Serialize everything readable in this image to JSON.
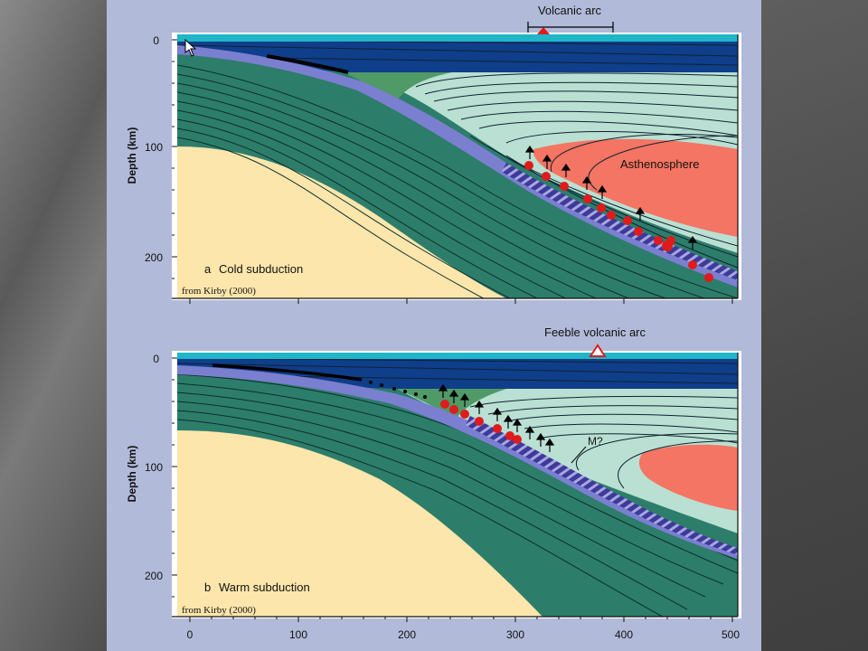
{
  "panel_a": {
    "arc_label": "Volcanic arc",
    "caption_letter": "a",
    "caption_text": "Cold subduction",
    "credit": "from Kirby (2000)",
    "ylabel": "Depth (km)",
    "y_ticks": [
      "0",
      "100",
      "200"
    ],
    "asthenosphere_label": "Asthenosphere"
  },
  "panel_b": {
    "arc_label": "Feeble volcanic arc",
    "caption_letter": "b",
    "caption_text": "Warm subduction",
    "credit": "from Kirby (2000)",
    "ylabel": "Depth (km)",
    "y_ticks": [
      "0",
      "100",
      "200"
    ],
    "x_ticks": [
      "0",
      "100",
      "200",
      "300",
      "400",
      "500"
    ],
    "melt_label": "M?"
  },
  "colors": {
    "slide_background": "#b2bad9",
    "ocean": "#0f3e8a",
    "lithosphere": "#2d7d6b",
    "mantle_wedge": "#b9e0d2",
    "green_wedge": "#4f9a66",
    "asthenosphere": "#f47563",
    "deep_mantle": "#fde6ac",
    "slab_crust": "#3d3a9a",
    "eclogite_dots": "#e01b1b"
  }
}
